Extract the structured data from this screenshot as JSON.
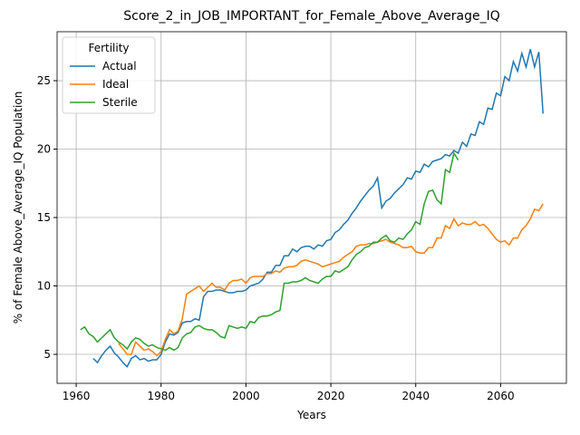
{
  "chart_data": {
    "type": "line",
    "title": "Score_2_in_JOB_IMPORTANT_for_Female_Above_Average_IQ",
    "xlabel": "Years",
    "ylabel": "% of Female Above_Average_IQ Population",
    "legend_title": "Fertility",
    "legend_loc": "upper left",
    "grid": true,
    "xlim": [
      1955.5,
      2075.5
    ],
    "ylim": [
      2.88,
      28.58
    ],
    "xticks": [
      1960,
      1980,
      2000,
      2020,
      2040,
      2060
    ],
    "yticks": [
      5,
      10,
      15,
      20,
      25
    ],
    "x": [
      1961,
      1962,
      1963,
      1964,
      1965,
      1966,
      1967,
      1968,
      1969,
      1970,
      1971,
      1972,
      1973,
      1974,
      1975,
      1976,
      1977,
      1978,
      1979,
      1980,
      1981,
      1982,
      1983,
      1984,
      1985,
      1986,
      1987,
      1988,
      1989,
      1990,
      1991,
      1992,
      1993,
      1994,
      1995,
      1996,
      1997,
      1998,
      1999,
      2000,
      2001,
      2002,
      2003,
      2004,
      2005,
      2006,
      2007,
      2008,
      2009,
      2010,
      2011,
      2012,
      2013,
      2014,
      2015,
      2016,
      2017,
      2018,
      2019,
      2020,
      2021,
      2022,
      2023,
      2024,
      2025,
      2026,
      2027,
      2028,
      2029,
      2030,
      2031,
      2032,
      2033,
      2034,
      2035,
      2036,
      2037,
      2038,
      2039,
      2040,
      2041,
      2042,
      2043,
      2044,
      2045,
      2046,
      2047,
      2048,
      2049,
      2050,
      2051,
      2052,
      2053,
      2054,
      2055,
      2056,
      2057,
      2058,
      2059,
      2060,
      2061,
      2062,
      2063,
      2064,
      2065,
      2066,
      2067,
      2068,
      2069,
      2070
    ],
    "series": [
      {
        "name": "Actual",
        "color": "#1f77b4",
        "values": [
          null,
          null,
          null,
          4.7,
          4.4,
          4.9,
          5.3,
          5.6,
          5.1,
          4.8,
          4.4,
          4.1,
          4.7,
          4.9,
          4.6,
          4.7,
          4.5,
          4.6,
          4.6,
          5.0,
          5.9,
          6.5,
          6.4,
          6.6,
          7.3,
          7.4,
          7.4,
          7.6,
          7.5,
          9.2,
          9.6,
          9.6,
          9.7,
          9.7,
          9.6,
          9.5,
          9.5,
          9.6,
          9.6,
          9.7,
          10.0,
          10.1,
          10.2,
          10.5,
          11.0,
          11.0,
          11.5,
          11.5,
          12.2,
          12.2,
          12.7,
          12.5,
          12.8,
          12.9,
          12.9,
          12.7,
          13.0,
          12.9,
          13.3,
          13.4,
          13.9,
          14.1,
          14.5,
          14.8,
          15.3,
          15.7,
          16.2,
          16.6,
          17.0,
          17.3,
          17.9,
          15.7,
          16.2,
          16.4,
          16.8,
          17.1,
          17.4,
          17.9,
          17.8,
          18.4,
          18.3,
          18.9,
          18.7,
          19.1,
          19.2,
          19.3,
          19.6,
          19.5,
          19.9,
          19.7,
          20.5,
          20.2,
          21.1,
          21.0,
          22.0,
          21.8,
          23.0,
          22.9,
          24.1,
          23.9,
          25.3,
          25.0,
          26.4,
          25.7,
          27.0,
          26.0,
          27.3,
          26.0,
          27.1,
          22.6
        ]
      },
      {
        "name": "Ideal",
        "color": "#ff7f0e",
        "values": [
          null,
          null,
          null,
          null,
          null,
          null,
          null,
          null,
          null,
          5.8,
          5.4,
          5.0,
          5.0,
          5.9,
          5.6,
          5.3,
          5.4,
          5.2,
          4.9,
          5.2,
          6.1,
          6.8,
          6.5,
          6.7,
          7.6,
          9.4,
          9.6,
          9.8,
          10.0,
          9.6,
          9.9,
          10.2,
          9.9,
          9.9,
          9.7,
          10.2,
          10.4,
          10.4,
          10.5,
          10.2,
          10.6,
          10.7,
          10.7,
          10.7,
          10.9,
          10.9,
          11.1,
          11.0,
          11.3,
          11.4,
          11.4,
          11.5,
          11.8,
          11.9,
          11.8,
          11.7,
          11.6,
          11.4,
          11.5,
          11.6,
          11.7,
          11.8,
          12.1,
          12.3,
          12.5,
          12.9,
          13.0,
          13.0,
          13.1,
          13.1,
          13.2,
          13.3,
          13.4,
          13.2,
          13.1,
          13.0,
          12.8,
          12.8,
          12.9,
          12.5,
          12.4,
          12.4,
          12.8,
          12.8,
          13.5,
          13.5,
          14.4,
          14.2,
          14.9,
          14.4,
          14.6,
          14.5,
          14.5,
          14.7,
          14.4,
          14.5,
          14.2,
          13.8,
          13.4,
          13.2,
          13.3,
          13.0,
          13.5,
          13.5,
          14.1,
          14.4,
          14.9,
          15.6,
          15.5,
          16.0
        ]
      },
      {
        "name": "Sterile",
        "color": "#2ca02c",
        "values": [
          6.8,
          7.0,
          6.5,
          6.3,
          5.9,
          6.2,
          6.5,
          6.8,
          6.2,
          5.9,
          5.7,
          5.4,
          5.9,
          6.2,
          6.1,
          5.8,
          5.6,
          5.7,
          5.5,
          5.4,
          5.3,
          5.5,
          5.3,
          5.5,
          6.2,
          6.5,
          6.6,
          7.0,
          7.1,
          6.9,
          6.8,
          6.8,
          6.6,
          6.3,
          6.2,
          7.1,
          7.0,
          6.9,
          7.0,
          6.9,
          7.4,
          7.3,
          7.7,
          7.8,
          7.8,
          7.9,
          8.1,
          8.2,
          10.2,
          10.2,
          10.3,
          10.3,
          10.4,
          10.6,
          10.4,
          10.3,
          10.2,
          10.5,
          10.7,
          10.7,
          11.1,
          11.0,
          11.2,
          11.4,
          11.9,
          12.3,
          12.5,
          12.8,
          12.9,
          13.2,
          13.2,
          13.5,
          13.7,
          13.3,
          13.2,
          13.5,
          13.4,
          13.8,
          14.1,
          14.7,
          14.5,
          16.0,
          16.9,
          17.0,
          16.3,
          16.0,
          18.5,
          18.3,
          19.7,
          19.2,
          null,
          null,
          null,
          null,
          null,
          null,
          null,
          null,
          null,
          null,
          null,
          null,
          null,
          null,
          null,
          null,
          null,
          null,
          null,
          null
        ]
      }
    ]
  }
}
